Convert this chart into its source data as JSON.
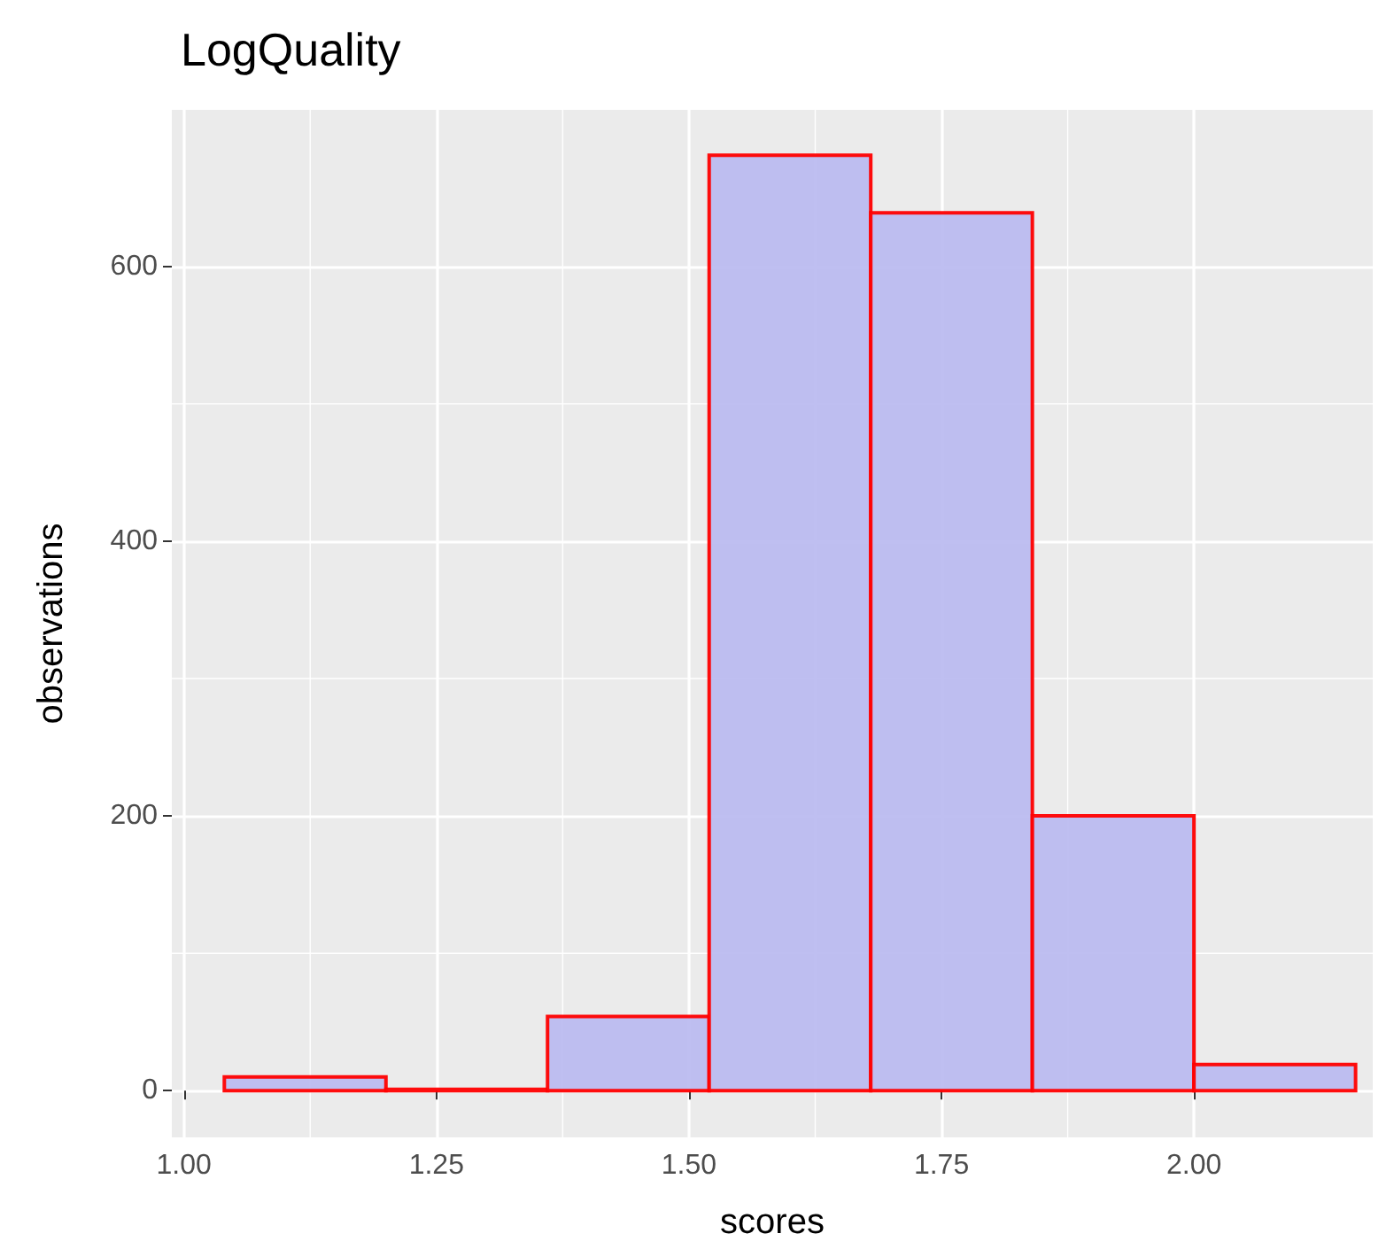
{
  "chart_data": {
    "type": "histogram",
    "title": "LogQuality",
    "xlabel": "scores",
    "ylabel": "observations",
    "bins": [
      1.04,
      1.2,
      1.36,
      1.52,
      1.68,
      1.84,
      2.0,
      2.16
    ],
    "values": [
      10,
      1,
      54,
      681,
      639,
      200,
      19
    ],
    "color": "#bcbcf0",
    "xlim": [
      0.988,
      2.177
    ],
    "xticks": [
      {
        "value": 1,
        "label": "1.00"
      },
      {
        "value": 1.25,
        "label": "1.25"
      },
      {
        "value": 1.5,
        "label": "1.50"
      },
      {
        "value": 1.75,
        "label": "1.75"
      },
      {
        "value": 2,
        "label": "2.00"
      }
    ],
    "ylim": [
      -34,
      714
    ],
    "yticks": [
      0,
      200,
      400,
      600
    ],
    "grid": true
  }
}
